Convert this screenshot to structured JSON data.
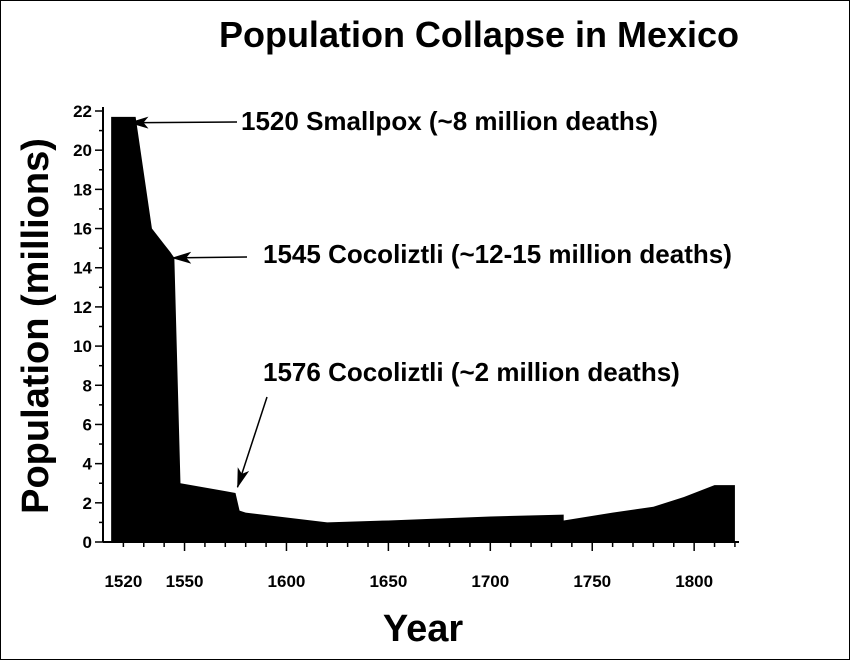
{
  "chart_data": {
    "type": "area",
    "title": "Population Collapse in Mexico",
    "xlabel": "Year",
    "ylabel": "Population (millions)",
    "xlim": [
      1510,
      1822
    ],
    "ylim": [
      0,
      22
    ],
    "x_ticks": [
      1520,
      1550,
      1600,
      1650,
      1700,
      1750,
      1800
    ],
    "y_ticks": [
      0,
      2,
      4,
      6,
      8,
      10,
      12,
      14,
      16,
      18,
      20,
      22
    ],
    "fill_color": "#000000",
    "series": [
      {
        "x": [
          1514,
          1526,
          1534,
          1540,
          1543,
          1545,
          1548,
          1570,
          1575,
          1577,
          1580,
          1620,
          1650,
          1700,
          1736,
          1736,
          1760,
          1780,
          1795,
          1810,
          1820
        ],
        "y": [
          21.7,
          21.7,
          16.0,
          15.2,
          14.8,
          14.5,
          3.0,
          2.6,
          2.5,
          1.6,
          1.5,
          1.0,
          1.1,
          1.3,
          1.4,
          1.1,
          1.5,
          1.8,
          2.3,
          2.9,
          2.9
        ]
      }
    ],
    "annotations": [
      {
        "text": "1520  Smallpox (~8 million deaths)",
        "x": 1523,
        "y": 21.4
      },
      {
        "text": "1545  Cocoliztli (~12-15 million deaths)",
        "x": 1544,
        "y": 14.5
      },
      {
        "text": "1576  Cocoliztli (~2 million deaths)",
        "x": 1576,
        "y": 2.8
      }
    ]
  }
}
